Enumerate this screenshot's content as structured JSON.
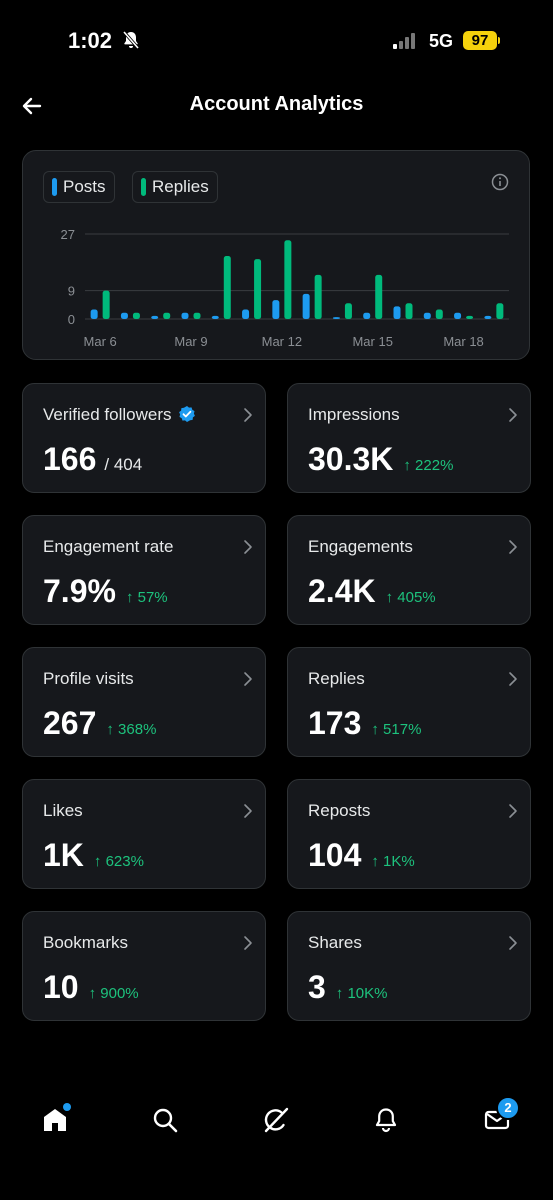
{
  "status_bar": {
    "time": "1:02",
    "network": "5G",
    "battery": "97"
  },
  "header": {
    "title": "Account Analytics"
  },
  "legend": {
    "posts_label": "Posts",
    "replies_label": "Replies"
  },
  "colors": {
    "posts": "#1d9bf0",
    "replies": "#00ba7c",
    "positive": "#1dc27d",
    "accent": "#1d9bf0"
  },
  "chart_data": {
    "type": "bar",
    "x_tick_labels": [
      "Mar 6",
      "Mar 9",
      "Mar 12",
      "Mar 15",
      "Mar 18"
    ],
    "y_ticks": [
      0,
      9,
      27
    ],
    "ylim": [
      0,
      27
    ],
    "grid": true,
    "series": [
      {
        "name": "Posts",
        "values": [
          3,
          2,
          1,
          2,
          1,
          3,
          6,
          8,
          0,
          2,
          4,
          2,
          2,
          1
        ]
      },
      {
        "name": "Replies",
        "values": [
          9,
          2,
          2,
          2,
          20,
          19,
          25,
          14,
          5,
          14,
          5,
          3,
          1,
          5
        ]
      }
    ]
  },
  "stats": [
    {
      "label": "Verified followers",
      "value": "166",
      "sub": "/ 404",
      "change": "",
      "verified": true
    },
    {
      "label": "Impressions",
      "value": "30.3K",
      "sub": "",
      "change": "↑ 222%"
    },
    {
      "label": "Engagement rate",
      "value": "7.9%",
      "sub": "",
      "change": "↑ 57%"
    },
    {
      "label": "Engagements",
      "value": "2.4K",
      "sub": "",
      "change": "↑ 405%"
    },
    {
      "label": "Profile visits",
      "value": "267",
      "sub": "",
      "change": "↑ 368%"
    },
    {
      "label": "Replies",
      "value": "173",
      "sub": "",
      "change": "↑ 517%"
    },
    {
      "label": "Likes",
      "value": "1K",
      "sub": "",
      "change": "↑ 623%"
    },
    {
      "label": "Reposts",
      "value": "104",
      "sub": "",
      "change": "↑ 1K%"
    },
    {
      "label": "Bookmarks",
      "value": "10",
      "sub": "",
      "change": "↑ 900%"
    },
    {
      "label": "Shares",
      "value": "3",
      "sub": "",
      "change": "↑ 10K%"
    }
  ],
  "nav": {
    "messages_badge": "2"
  }
}
